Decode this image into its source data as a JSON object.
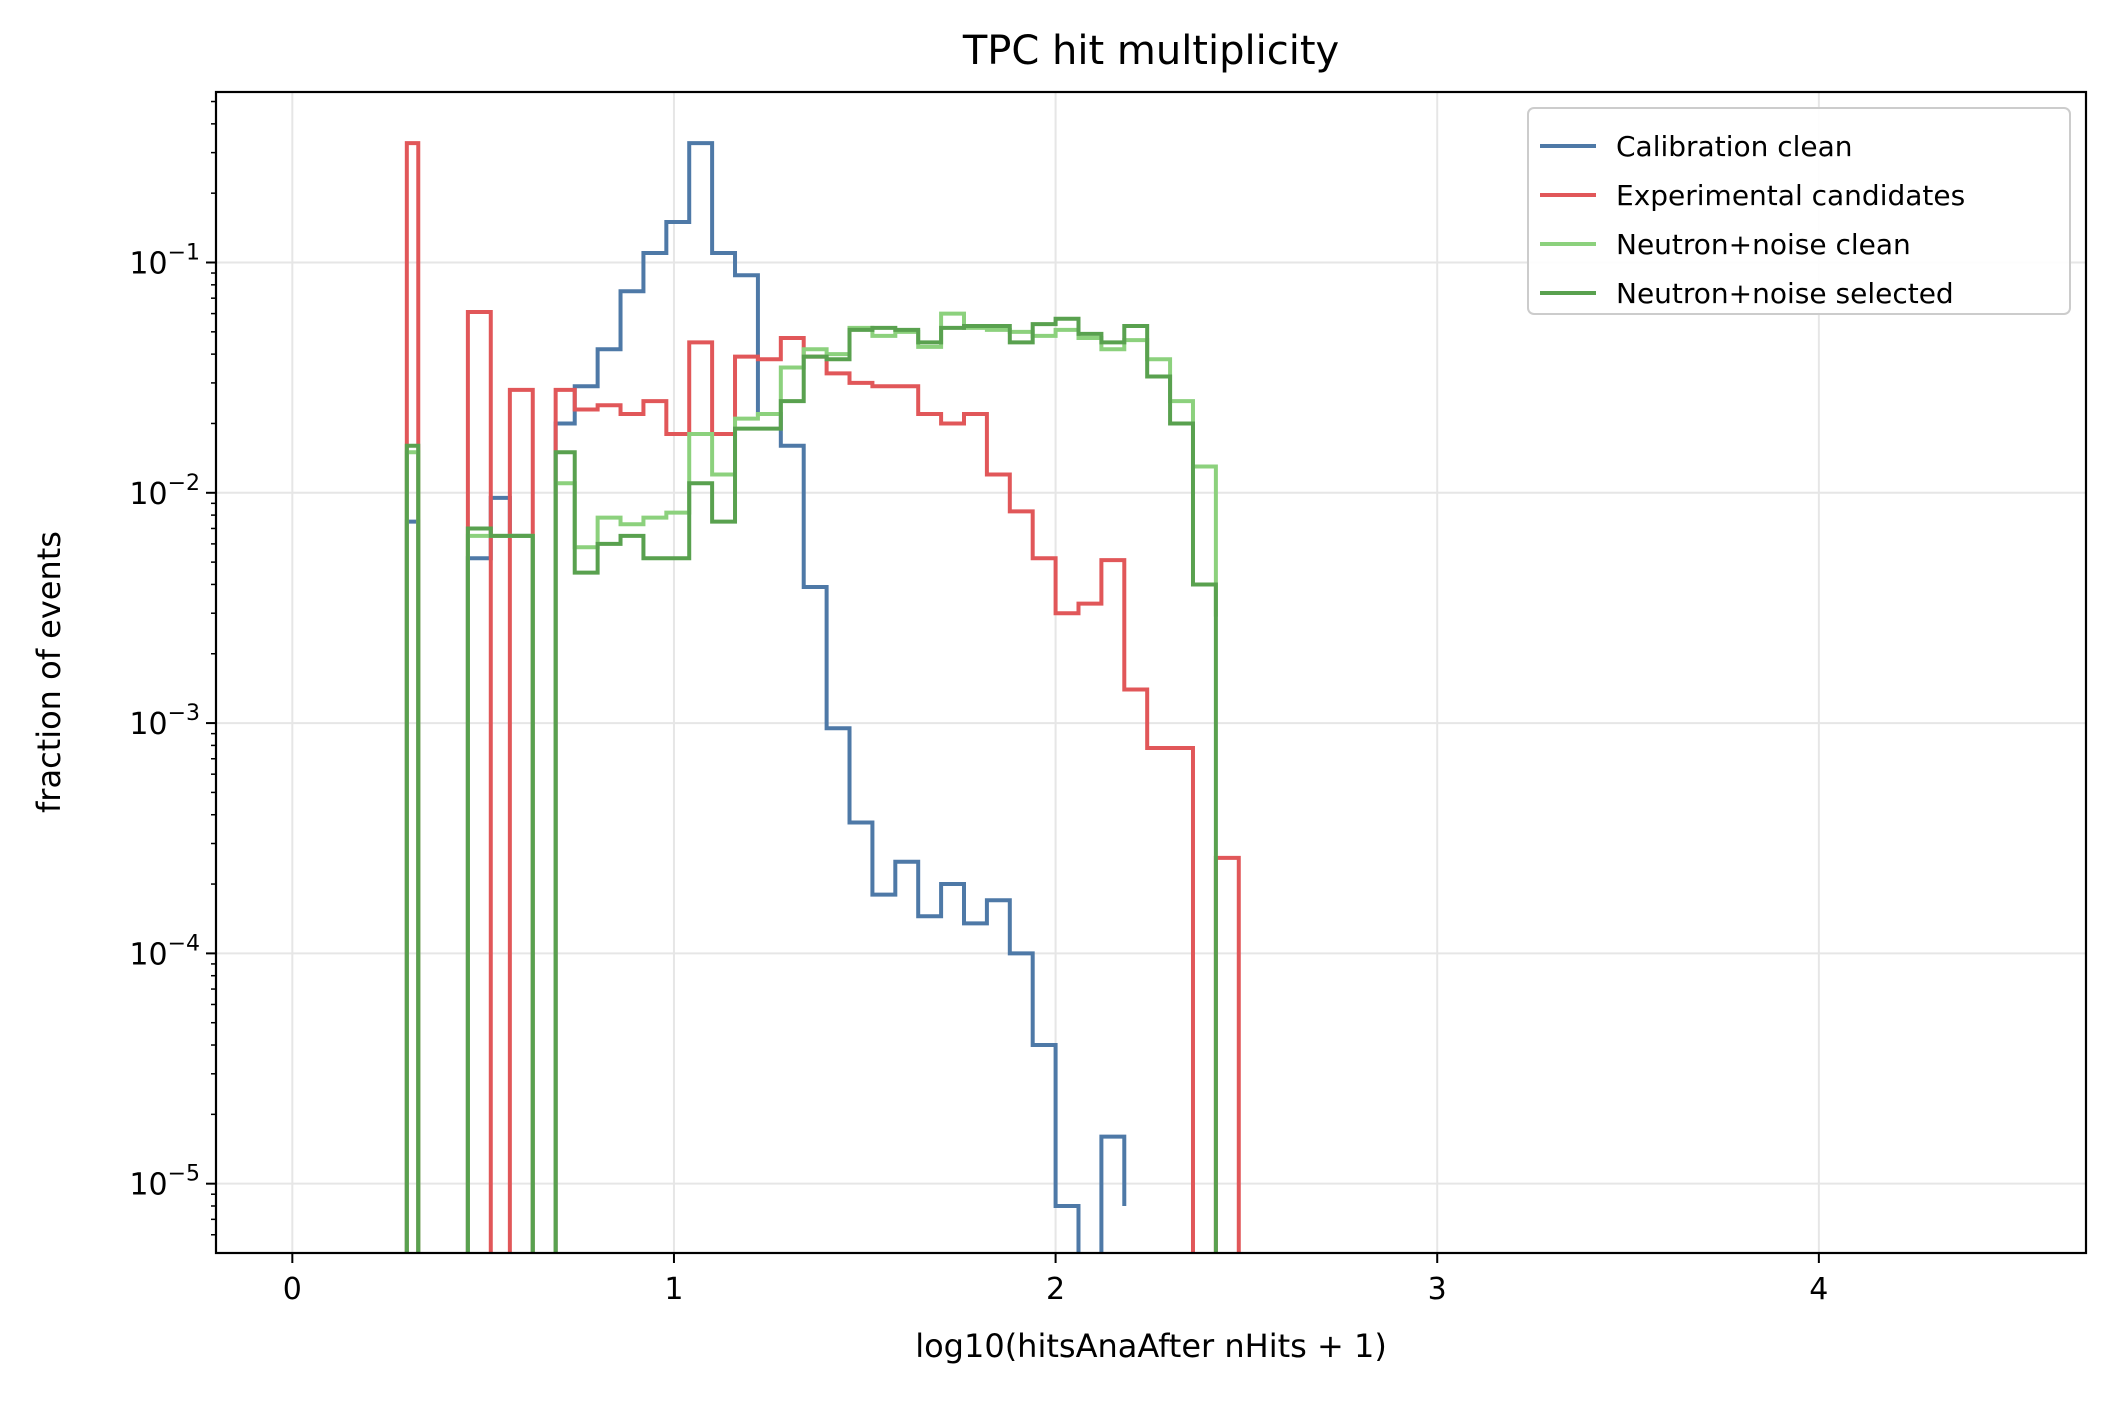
{
  "chart_data": {
    "type": "line",
    "drawstyle": "steps",
    "title": "TPC hit multiplicity",
    "xlabel": "log10(hitsAnaAfter nHits + 1)",
    "ylabel": "fraction of events",
    "xlim": [
      -0.2,
      4.7
    ],
    "ylog": true,
    "ylim": [
      5e-06,
      0.55
    ],
    "x_ticks": [
      0,
      1,
      2,
      3,
      4
    ],
    "x_tick_labels": [
      "0",
      "1",
      "2",
      "3",
      "4"
    ],
    "y_ticks": [
      1e-05,
      0.0001,
      0.001,
      0.01,
      0.1
    ],
    "y_tick_labels": [
      {
        "base": "10",
        "exp": "−5"
      },
      {
        "base": "10",
        "exp": "−4"
      },
      {
        "base": "10",
        "exp": "−3"
      },
      {
        "base": "10",
        "exp": "−2"
      },
      {
        "base": "10",
        "exp": "−1"
      }
    ],
    "grid": true,
    "legend": "top-right",
    "series": [
      {
        "name": "Calibration clean",
        "color": "#4e79a7",
        "edges": [
          0.3,
          0.33,
          0.46,
          0.52,
          0.57,
          0.63,
          0.69,
          0.74,
          0.8,
          0.86,
          0.92,
          0.98,
          1.04,
          1.1,
          1.16,
          1.22,
          1.28,
          1.34,
          1.4,
          1.46,
          1.52,
          1.58,
          1.64,
          1.7,
          1.76,
          1.82,
          1.88,
          1.94,
          2.0,
          2.06,
          2.12,
          2.18
        ],
        "values": [
          0.0075,
          0,
          0.0052,
          0.0095,
          0.0065,
          0,
          0.02,
          0.029,
          0.042,
          0.075,
          0.11,
          0.15,
          0.33,
          0.11,
          0.088,
          0.022,
          0.016,
          0.0039,
          0.00095,
          0.00037,
          0.00018,
          0.00025,
          0.000145,
          0.0002,
          0.000135,
          0.00017,
          0.0001,
          4e-05,
          8e-06,
          3.5e-06,
          1.6e-05,
          8e-06
        ]
      },
      {
        "name": "Experimental candidates",
        "color": "#e15759",
        "edges": [
          0.3,
          0.33,
          0.46,
          0.52,
          0.57,
          0.63,
          0.69,
          0.74,
          0.8,
          0.86,
          0.92,
          0.98,
          1.04,
          1.1,
          1.16,
          1.22,
          1.28,
          1.34,
          1.4,
          1.46,
          1.52,
          1.58,
          1.64,
          1.7,
          1.76,
          1.82,
          1.88,
          1.94,
          2.0,
          2.06,
          2.12,
          2.18,
          2.24,
          2.3,
          2.36,
          2.42,
          2.48
        ],
        "values": [
          0.33,
          0,
          0.061,
          0,
          0.028,
          0,
          0.028,
          0.023,
          0.024,
          0.022,
          0.025,
          0.018,
          0.045,
          0.018,
          0.039,
          0.038,
          0.047,
          0.039,
          0.033,
          0.03,
          0.029,
          0.029,
          0.022,
          0.02,
          0.022,
          0.012,
          0.0083,
          0.0052,
          0.003,
          0.0033,
          0.0051,
          0.0014,
          0.00078,
          0.00078,
          2e-06,
          0.00026
        ]
      },
      {
        "name": "Neutron+noise clean",
        "color": "#8cd17d",
        "edges": [
          0.3,
          0.33,
          0.46,
          0.52,
          0.57,
          0.63,
          0.69,
          0.74,
          0.8,
          0.86,
          0.92,
          0.98,
          1.04,
          1.1,
          1.16,
          1.22,
          1.28,
          1.34,
          1.4,
          1.46,
          1.52,
          1.58,
          1.64,
          1.7,
          1.76,
          1.82,
          1.88,
          1.94,
          2.0,
          2.06,
          2.12,
          2.18,
          2.24,
          2.3,
          2.36,
          2.42
        ],
        "values": [
          0.015,
          0,
          0.0065,
          0.0065,
          0.0065,
          0,
          0.011,
          0.0058,
          0.0078,
          0.0073,
          0.0078,
          0.0082,
          0.018,
          0.012,
          0.021,
          0.022,
          0.035,
          0.042,
          0.04,
          0.052,
          0.048,
          0.05,
          0.043,
          0.06,
          0.052,
          0.051,
          0.05,
          0.048,
          0.051,
          0.047,
          0.042,
          0.046,
          0.038,
          0.025,
          0.013,
          0.0029
        ]
      },
      {
        "name": "Neutron+noise selected",
        "color": "#59a14f",
        "edges": [
          0.3,
          0.33,
          0.46,
          0.52,
          0.57,
          0.63,
          0.69,
          0.74,
          0.8,
          0.86,
          0.92,
          0.98,
          1.04,
          1.1,
          1.16,
          1.22,
          1.28,
          1.34,
          1.4,
          1.46,
          1.52,
          1.58,
          1.64,
          1.7,
          1.76,
          1.82,
          1.88,
          1.94,
          2.0,
          2.06,
          2.12,
          2.18,
          2.24,
          2.3,
          2.36,
          2.42
        ],
        "values": [
          0.016,
          0,
          0.007,
          0.0065,
          0.0065,
          0,
          0.015,
          0.0045,
          0.006,
          0.0065,
          0.0052,
          0.0052,
          0.011,
          0.0075,
          0.019,
          0.019,
          0.025,
          0.039,
          0.038,
          0.051,
          0.052,
          0.051,
          0.045,
          0.052,
          0.053,
          0.053,
          0.045,
          0.054,
          0.057,
          0.049,
          0.045,
          0.053,
          0.032,
          0.02,
          0.004,
          2e-06
        ]
      }
    ]
  }
}
